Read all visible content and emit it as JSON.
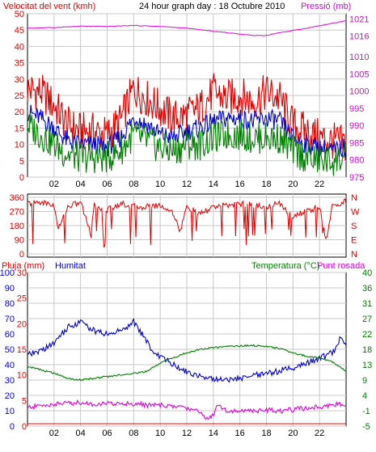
{
  "colors": {
    "wind_speed": "#e00000",
    "wind_avg": "#0000cc",
    "wind_green": "#008000",
    "pressure": "#e000e0",
    "direction": "#e00000",
    "rain": "#ff0000",
    "humidity": "#0000cc",
    "temperature": "#008000",
    "dewpoint": "#e000e0",
    "grid": "#c8c8c8",
    "axis": "#000000"
  },
  "chart_data": [
    {
      "type": "line",
      "title": "24 hour graph day : 18 Octubre 2010",
      "left_label": "Velocitat del vent (kmh)",
      "right_label": "Pressió (mb)",
      "x_ticks": [
        "02",
        "04",
        "06",
        "08",
        "10",
        "12",
        "14",
        "16",
        "18",
        "20",
        "22"
      ],
      "y_left_ticks": [
        "0",
        "5",
        "10",
        "15",
        "20",
        "25",
        "30",
        "35",
        "40",
        "45",
        "50"
      ],
      "y_left_range": [
        0,
        50
      ],
      "y_right_ticks": [
        "975",
        "980",
        "985",
        "990",
        "995",
        "1000",
        "1005",
        "1010",
        "1016",
        "1021"
      ],
      "y_right_range": [
        975,
        1022.5
      ],
      "x_range_hours": [
        0,
        24
      ],
      "series": [
        {
          "key": "wind_gust",
          "hours": [
            0,
            1,
            2,
            3,
            4,
            5,
            6,
            7,
            8,
            9,
            10,
            11,
            12,
            13,
            14,
            15,
            16,
            17,
            18,
            19,
            20,
            21,
            22,
            23,
            24
          ],
          "values": [
            27,
            26,
            22,
            16,
            14,
            14,
            13,
            17,
            27,
            24,
            21,
            18,
            19,
            21,
            26,
            24,
            25,
            23,
            26,
            24,
            16,
            14,
            12,
            11,
            10
          ]
        },
        {
          "key": "wind_avg",
          "hours": [
            0,
            1,
            2,
            3,
            4,
            5,
            6,
            7,
            8,
            9,
            10,
            11,
            12,
            13,
            14,
            15,
            16,
            17,
            18,
            19,
            20,
            21,
            22,
            23,
            24
          ],
          "values": [
            20,
            18,
            15,
            11,
            10,
            10,
            9,
            12,
            18,
            16,
            13,
            12,
            14,
            15,
            17,
            18,
            18,
            17,
            18,
            17,
            12,
            10,
            9,
            8,
            9
          ]
        },
        {
          "key": "wind_low",
          "hours": [
            0,
            1,
            2,
            3,
            4,
            5,
            6,
            7,
            8,
            9,
            10,
            11,
            12,
            13,
            14,
            15,
            16,
            17,
            18,
            19,
            20,
            21,
            22,
            23,
            24
          ],
          "values": [
            16,
            13,
            10,
            7,
            6,
            6,
            6,
            8,
            13,
            11,
            9,
            8,
            10,
            10,
            12,
            13,
            13,
            12,
            12,
            12,
            8,
            6,
            5,
            5,
            6
          ]
        },
        {
          "key": "pressure",
          "hours": [
            0,
            2,
            4,
            6,
            8,
            10,
            12,
            14,
            16,
            17,
            18,
            19,
            20,
            22,
            24
          ],
          "values": [
            1018.3,
            1018.5,
            1018.9,
            1018.8,
            1019.1,
            1018.8,
            1018.3,
            1017.4,
            1016.6,
            1016.2,
            1016.2,
            1017.0,
            1017.6,
            1019.0,
            1020.5
          ]
        }
      ]
    },
    {
      "type": "scatter",
      "left_ticks": [
        "360",
        "270",
        "180",
        "90",
        "0"
      ],
      "right_ticks": [
        "N",
        "W",
        "S",
        "E",
        "N"
      ],
      "y_range": [
        0,
        360
      ],
      "series": [
        {
          "key": "direction",
          "hours": [
            0,
            1,
            2,
            2.3,
            3,
            4,
            4.8,
            5,
            6,
            7,
            8,
            9,
            10,
            11,
            11.5,
            12,
            13,
            14,
            15,
            16,
            17,
            18,
            19,
            20,
            21,
            22,
            22.5,
            23,
            24
          ],
          "values": [
            320,
            330,
            310,
            150,
            300,
            330,
            120,
            310,
            280,
            320,
            300,
            300,
            310,
            260,
            140,
            300,
            250,
            300,
            310,
            320,
            310,
            300,
            320,
            240,
            270,
            300,
            70,
            320,
            330
          ]
        }
      ]
    },
    {
      "type": "line",
      "left_label_1": "Pluja (mm)",
      "left_label_2": "Humitat",
      "right_label": "Temperatura (°C)",
      "right_label_2": "Punt rosada",
      "y_left_rain_ticks": [
        "0",
        "5",
        "10",
        "15",
        "20",
        "25",
        "30"
      ],
      "y_left_hum_ticks": [
        "0",
        "10",
        "20",
        "30",
        "40",
        "50",
        "60",
        "70",
        "80",
        "90",
        "100"
      ],
      "y_right_ticks": [
        "-5",
        "-1",
        "4",
        "9",
        "13",
        "18",
        "22",
        "27",
        "31",
        "36",
        "40"
      ],
      "y_left_range": [
        0,
        100
      ],
      "y_right_range": [
        -5,
        40
      ],
      "x_ticks": [
        "02",
        "04",
        "06",
        "08",
        "10",
        "12",
        "14",
        "16",
        "18",
        "20",
        "22"
      ],
      "series": [
        {
          "key": "humidity",
          "hours": [
            0,
            1,
            2,
            3,
            4,
            5,
            6,
            7,
            8,
            9,
            9.5,
            10,
            11,
            12,
            13,
            14,
            15,
            16,
            17,
            18,
            19,
            20,
            21,
            22,
            23,
            23.6,
            24
          ],
          "values": [
            46,
            49,
            54,
            64,
            68,
            62,
            60,
            62,
            68,
            55,
            48,
            45,
            40,
            35,
            33,
            31,
            30,
            31,
            33,
            34,
            36,
            38,
            41,
            44,
            48,
            58,
            54
          ]
        },
        {
          "key": "temperature",
          "hours": [
            0,
            1,
            2,
            3,
            4,
            5,
            6,
            7,
            8,
            9,
            10,
            11,
            12,
            13,
            14,
            15,
            16,
            17,
            18,
            19,
            20,
            21,
            22,
            23,
            24
          ],
          "values": [
            12.5,
            11.5,
            10.5,
            9.0,
            8.5,
            9.0,
            9.5,
            10.0,
            10.5,
            11.0,
            13.5,
            15.0,
            16.5,
            17.5,
            18.0,
            18.3,
            18.5,
            18.6,
            18.3,
            17.8,
            16.5,
            15.5,
            15.0,
            13.8,
            11.0
          ]
        },
        {
          "key": "dewpoint",
          "hours": [
            0,
            1,
            2,
            3,
            4,
            5,
            6,
            7,
            8,
            9,
            10,
            11,
            12,
            13,
            13.6,
            14,
            14.3,
            15,
            16,
            17,
            18,
            19,
            20,
            21,
            22,
            23,
            24
          ],
          "values": [
            0.4,
            1.0,
            1.4,
            1.8,
            1.9,
            1.4,
            1.6,
            1.6,
            1.6,
            1.2,
            1.1,
            0.8,
            0.3,
            -0.8,
            -3.0,
            -1.5,
            1.5,
            -0.5,
            -0.6,
            -0.5,
            -0.3,
            -0.5,
            -0.2,
            0.3,
            0.6,
            1.3,
            1.6
          ]
        },
        {
          "key": "rain",
          "hours": [
            0,
            24
          ],
          "values": [
            0,
            0
          ]
        }
      ]
    }
  ]
}
